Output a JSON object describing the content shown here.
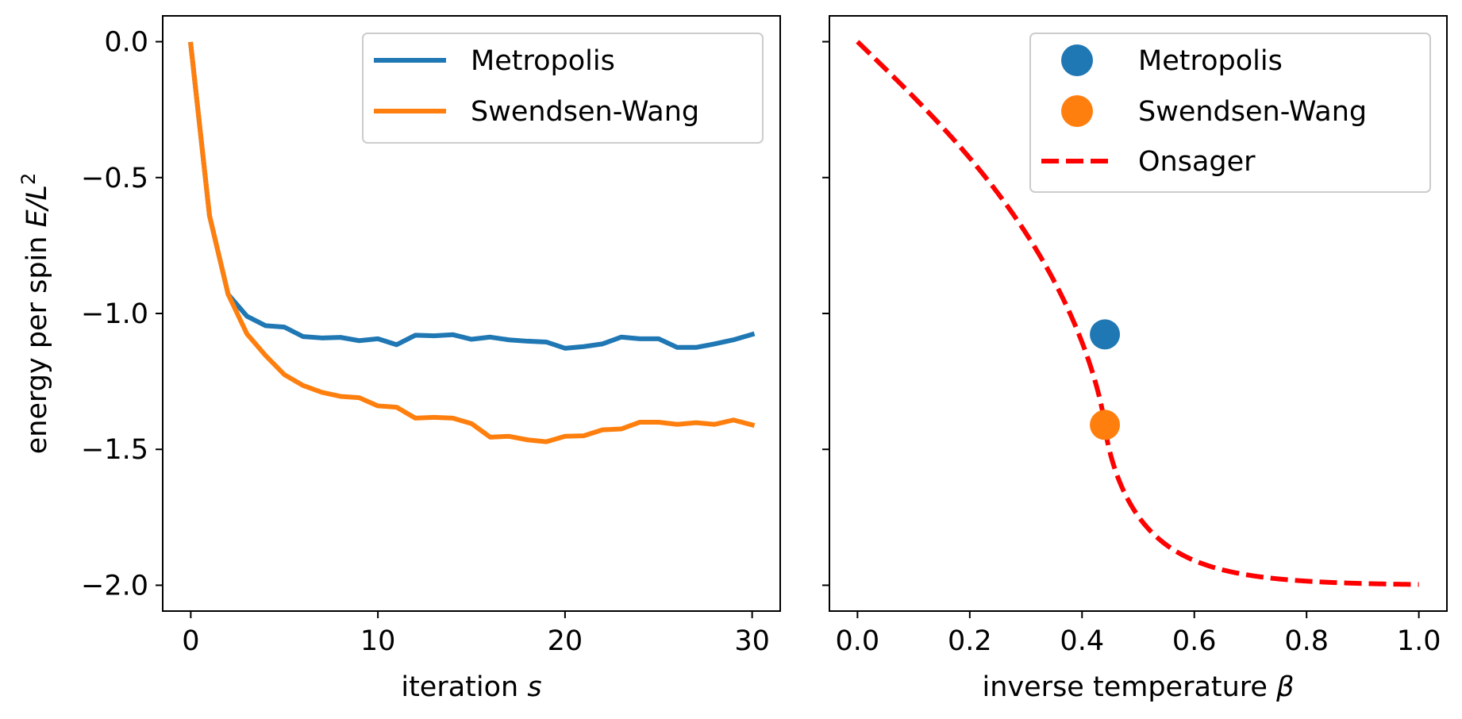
{
  "chart_data": [
    {
      "type": "line",
      "xlabel": "iteration",
      "xlabel_var": "s",
      "ylabel": "energy per spin",
      "ylabel_var": "E/L",
      "ylabel_sup": "2",
      "xlim": [
        -1.5,
        31.5
      ],
      "ylim": [
        -2.095,
        0.095
      ],
      "xticks": [
        0,
        10,
        20,
        30
      ],
      "xtick_labels": [
        "0",
        "10",
        "20",
        "30"
      ],
      "yticks": [
        0.0,
        -0.5,
        -1.0,
        -1.5,
        -2.0
      ],
      "ytick_labels": [
        "0.0",
        "−0.5",
        "−1.0",
        "−1.5",
        "−2.0"
      ],
      "grid": false,
      "legend_position": "top-right",
      "x": [
        0,
        1,
        2,
        3,
        4,
        5,
        6,
        7,
        8,
        9,
        10,
        11,
        12,
        13,
        14,
        15,
        16,
        17,
        18,
        19,
        20,
        21,
        22,
        23,
        24,
        25,
        26,
        27,
        28,
        29,
        30
      ],
      "series": [
        {
          "name": "Metropolis",
          "color": "#1f77b4",
          "values": [
            -0.01,
            -0.64,
            -0.93,
            -1.01,
            -1.045,
            -1.05,
            -1.085,
            -1.09,
            -1.088,
            -1.1,
            -1.093,
            -1.115,
            -1.08,
            -1.082,
            -1.078,
            -1.095,
            -1.087,
            -1.097,
            -1.102,
            -1.105,
            -1.128,
            -1.122,
            -1.112,
            -1.087,
            -1.093,
            -1.093,
            -1.125,
            -1.125,
            -1.112,
            -1.097,
            -1.077
          ]
        },
        {
          "name": "Swendsen-Wang",
          "color": "#ff7f0e",
          "values": [
            -0.01,
            -0.64,
            -0.93,
            -1.075,
            -1.155,
            -1.225,
            -1.265,
            -1.29,
            -1.305,
            -1.31,
            -1.34,
            -1.345,
            -1.385,
            -1.382,
            -1.385,
            -1.405,
            -1.455,
            -1.452,
            -1.465,
            -1.472,
            -1.452,
            -1.45,
            -1.428,
            -1.425,
            -1.4,
            -1.4,
            -1.408,
            -1.402,
            -1.408,
            -1.392,
            -1.41
          ]
        }
      ]
    },
    {
      "type": "scatter",
      "xlabel": "inverse temperature",
      "xlabel_var": "β",
      "xlim": [
        -0.05,
        1.05
      ],
      "ylim": [
        -2.095,
        0.095
      ],
      "xticks": [
        0.0,
        0.2,
        0.4,
        0.6,
        0.8,
        1.0
      ],
      "xtick_labels": [
        "0.0",
        "0.2",
        "0.4",
        "0.6",
        "0.8",
        "1.0"
      ],
      "yticks": [
        0.0,
        -0.5,
        -1.0,
        -1.5,
        -2.0
      ],
      "grid": false,
      "legend_position": "top-right",
      "series": [
        {
          "name": "Metropolis",
          "kind": "point",
          "color": "#1f77b4",
          "x": [
            0.4407
          ],
          "values": [
            -1.077
          ]
        },
        {
          "name": "Swendsen-Wang",
          "kind": "point",
          "color": "#ff7f0e",
          "x": [
            0.4407
          ],
          "values": [
            -1.41
          ]
        },
        {
          "name": "Onsager",
          "kind": "dashed-line",
          "color": "#ff0000"
        }
      ]
    }
  ]
}
